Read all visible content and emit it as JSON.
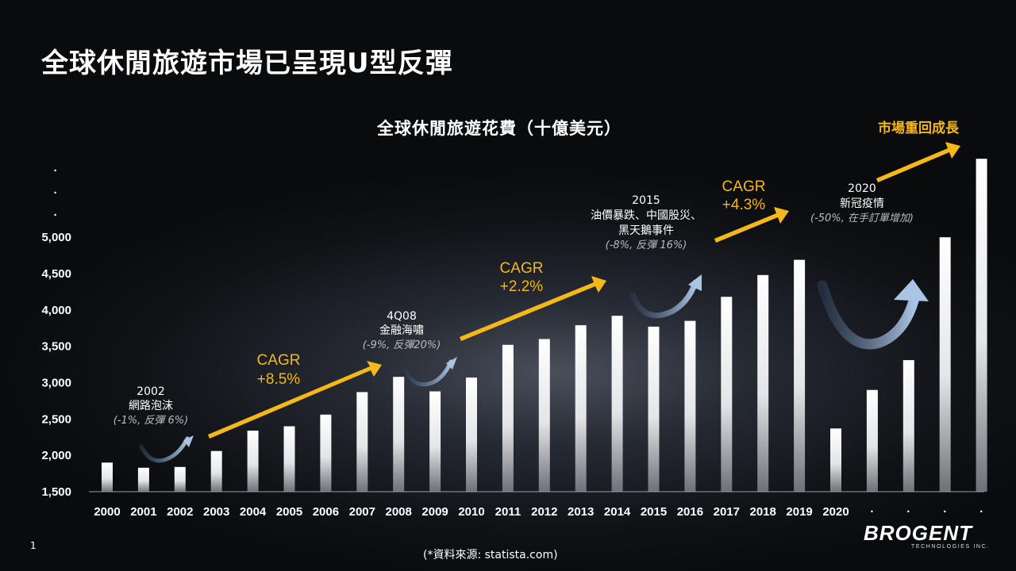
{
  "slide": {
    "title": "全球休閒旅遊市場已呈現U型反彈",
    "page_number": "1",
    "source": "(*資料來源: statista.com)"
  },
  "logo": {
    "main": "BROGENT",
    "sub": "TECHNOLOGIES INC."
  },
  "colors": {
    "arrow": "#f5b81a",
    "bar_top": "#ffffff",
    "bar_bottom": "#6e7078",
    "curve": "#a9c4e4"
  },
  "chart_data": {
    "type": "bar",
    "title": "全球休閒旅遊花費（十億美元）",
    "categories": [
      "2000",
      "2001",
      "2002",
      "2003",
      "2004",
      "2005",
      "2006",
      "2007",
      "2008",
      "2009",
      "2010",
      "2011",
      "2012",
      "2013",
      "2014",
      "2015",
      "2016",
      "2017",
      "2018",
      "2019",
      "2020",
      "·",
      "·",
      "·",
      "·"
    ],
    "values": [
      1900,
      1830,
      1840,
      2060,
      2340,
      2400,
      2560,
      2870,
      3080,
      2880,
      3070,
      3520,
      3600,
      3790,
      3920,
      3770,
      3850,
      4180,
      4480,
      4690,
      2370,
      2900,
      3310,
      5000,
      6080
    ],
    "y_ticks": [
      "1,500",
      "2,000",
      "2,500",
      "3,000",
      "3,500",
      "4,000",
      "4,500",
      "5,000"
    ],
    "y_extra": [
      "·",
      "·",
      "·"
    ],
    "ylim": [
      1500,
      6300
    ],
    "events": [
      {
        "year": "2002",
        "lines": [
          "網路泡沫"
        ],
        "note": "(-1%, 反彈 6%)"
      },
      {
        "year": "4Q08",
        "lines": [
          "金融海嘯"
        ],
        "note": "(-9%, 反彈20%)"
      },
      {
        "year": "2015",
        "lines": [
          "油價暴跌、中國股災、",
          "黑天鵝事件"
        ],
        "note": "(-8%, 反彈 16%)"
      },
      {
        "year": "2020",
        "lines": [
          "新冠疫情"
        ],
        "note": "(-50%, 在手訂單增加)"
      }
    ],
    "trends": [
      {
        "label": "CAGR",
        "value": "+8.5%"
      },
      {
        "label": "CAGR",
        "value": "+2.2%"
      },
      {
        "label": "CAGR",
        "value": "+4.3%"
      }
    ],
    "growth_label": "市場重回成長"
  }
}
